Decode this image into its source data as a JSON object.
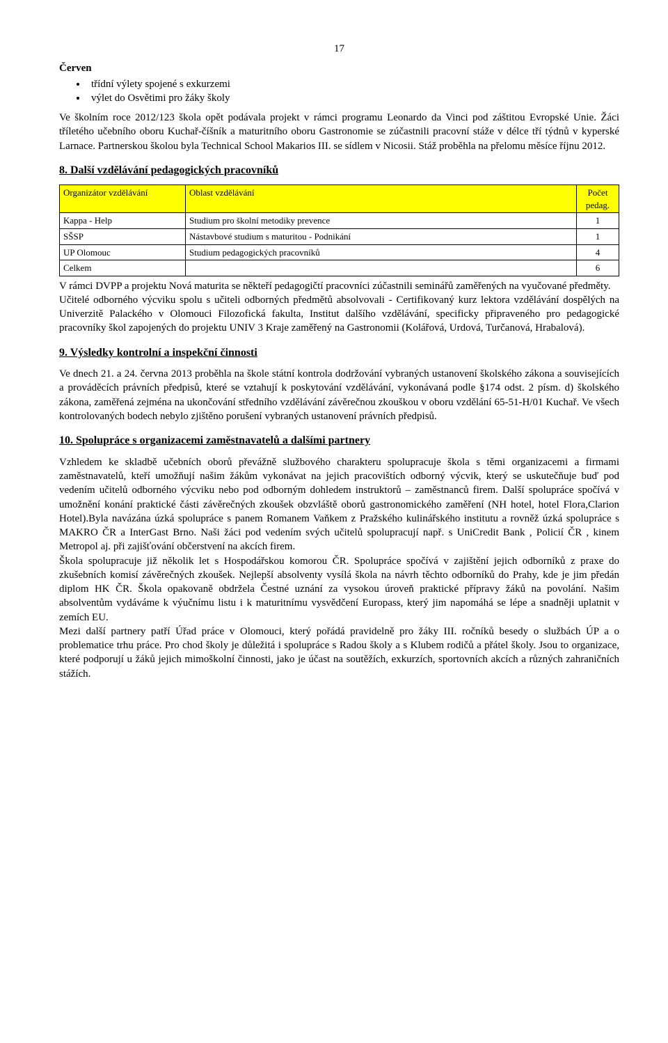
{
  "pageNumber": "17",
  "month": "Červen",
  "bullets": [
    "třídní výlety spojené s exkurzemi",
    "výlet do Osvětimi pro žáky školy"
  ],
  "intro": "Ve školním roce 2012/123 škola opět podávala projekt v rámci programu Leonardo da Vinci pod záštitou Evropské Unie. Žáci tříletého učebního oboru Kuchař-číšník a maturitního oboru Gastronomie se zúčastnili pracovní stáže v délce tří týdnů v kyperské Larnace. Partnerskou školou byla Technical School Makarios III. se sídlem v Nicosii. Stáž proběhla na přelomu měsíce říjnu 2012.",
  "section8": {
    "title": "8. Další vzdělávání pedagogických pracovníků",
    "headers": [
      "Organizátor vzdělávání",
      "Oblast vzdělávání",
      "Počet pedag."
    ],
    "rows": [
      [
        "Kappa - Help",
        "Studium pro školní metodiky prevence",
        "1"
      ],
      [
        "SŠSP",
        "Nástavbové studium s maturitou - Podnikání",
        "1"
      ],
      [
        "UP Olomouc",
        "Studium pedagogických pracovníků",
        "4"
      ],
      [
        "Celkem",
        "",
        "6"
      ]
    ],
    "paragraphs": [
      "V rámci DVPP a projektu Nová maturita se někteří pedagogičtí pracovníci zúčastnili seminářů zaměřených na vyučované předměty.",
      "Učitelé odborného výcviku spolu s učiteli odborných předmětů absolvovali - Certifikovaný kurz lektora vzdělávání dospělých na Univerzitě Palackého v Olomouci Filozofická fakulta, Institut dalšího vzdělávání, specificky připraveného pro pedagogické pracovníky škol zapojených do projektu UNIV 3 Kraje zaměřený na Gastronomii (Kolářová, Urdová, Turčanová, Hrabalová)."
    ]
  },
  "section9": {
    "title": "9. Výsledky kontrolní a inspekční činnosti",
    "paragraph": "Ve dnech 21. a 24. června 2013 proběhla na škole státní  kontrola dodržování vybraných ustanovení školského zákona a souvisejících a prováděcích právních předpisů, které se vztahují k poskytování vzdělávání, vykonávaná podle §174 odst. 2 písm. d) školského zákona, zaměřená zejména na ukončování středního vzdělávání závěrečnou zkouškou v oboru vzdělání 65-51-H/01 Kuchař. Ve všech kontrolovaných bodech nebylo zjištěno porušení vybraných ustanovení právních předpisů."
  },
  "section10": {
    "title": "10. Spolupráce s organizacemi zaměstnavatelů a dalšími partnery",
    "paragraphs": [
      "Vzhledem ke skladbě učebních oborů převážně službového charakteru spolupracuje škola s těmi organizacemi a firmami zaměstnavatelů, kteří umožňují našim žákům vykonávat na jejich pracovištích odborný výcvik, který se uskutečňuje buď pod vedením učitelů odborného výcviku nebo pod odborným dohledem instruktorů – zaměstnanců firem. Další spolupráce spočívá v umožnění konání praktické části závěrečných zkoušek obzvláště oborů gastronomického zaměření (NH hotel, hotel Flora,Clarion Hotel).Byla navázána úzká spolupráce s panem Romanem Vaňkem z Pražského kulinářského institutu a rovněž úzká spolupráce s MAKRO ČR a InterGast Brno. Naši žáci pod vedením svých učitelů spolupracují např. s UniCredit Bank , Policií ČR , kinem Metropol aj. při zajišťování občerstvení na akcích firem.",
      "Škola spolupracuje již několik let s Hospodářskou komorou ČR. Spolupráce spočívá v zajištění jejich odborníků z praxe do zkušebních komisí závěrečných zkoušek. Nejlepší absolventy vysílá škola na návrh těchto odborníků do Prahy, kde je jim předán diplom HK ČR. Škola opakovaně obdržela Čestné uznání za vysokou úroveň praktické přípravy žáků na povolání. Našim absolventům vydáváme k výučnímu listu i k maturitnímu vysvědčení Europass, který jim napomáhá se lépe a snadněji uplatnit v zemích EU.",
      "Mezi další partnery patří Úřad práce v Olomouci, který pořádá pravidelně pro žáky III. ročníků besedy o službách ÚP a o problematice trhu práce. Pro chod školy je důležitá i spolupráce s Radou školy a s Klubem rodičů a přátel školy. Jsou to organizace, které podporují u žáků jejich mimoškolní činnosti, jako je účast na soutěžích, exkurzích, sportovních akcích a různých zahraničních stážích."
    ]
  }
}
